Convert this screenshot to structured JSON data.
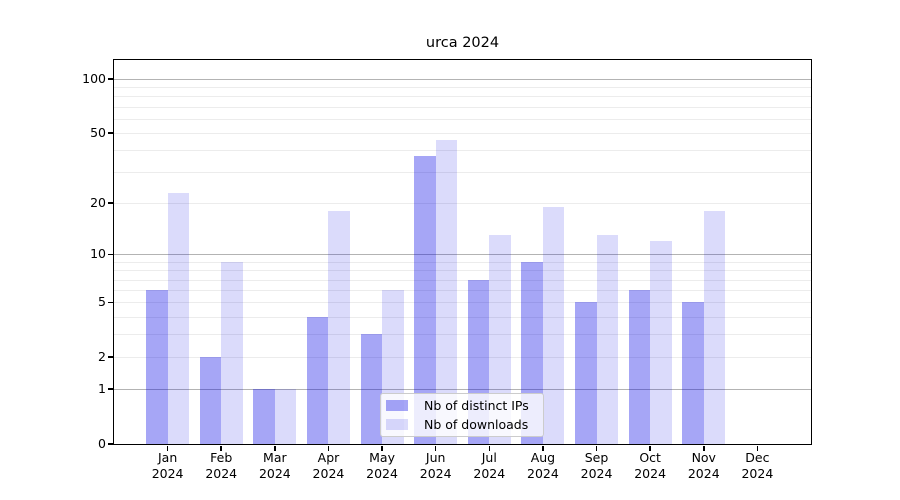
{
  "title": "urca 2024",
  "chart_data": {
    "type": "bar",
    "title": "urca 2024",
    "categories": [
      "Jan 2024",
      "Feb 2024",
      "Mar 2024",
      "Apr 2024",
      "May 2024",
      "Jun 2024",
      "Jul 2024",
      "Aug 2024",
      "Sep 2024",
      "Oct 2024",
      "Nov 2024",
      "Dec 2024"
    ],
    "series": [
      {
        "name": "Nb of distinct IPs",
        "color": "rgba(0,0,230,0.35)",
        "values": [
          6,
          2,
          1,
          4,
          3,
          37,
          7,
          9,
          5,
          6,
          5,
          0
        ]
      },
      {
        "name": "Nb of downloads",
        "color": "rgba(0,0,230,0.14)",
        "values": [
          23,
          9,
          1,
          18,
          6,
          46,
          13,
          19,
          13,
          12,
          18,
          0
        ]
      }
    ],
    "xlabel": "",
    "ylabel": "",
    "yscale": "log1p",
    "ylim": [
      0,
      127.4
    ],
    "yticks": [
      0,
      1,
      2,
      5,
      10,
      20,
      50,
      100
    ],
    "major_gridlines": [
      1,
      10,
      100
    ],
    "minor_gridlines": [
      2,
      3,
      4,
      5,
      6,
      7,
      8,
      9,
      20,
      30,
      40,
      50,
      60,
      70,
      80,
      90
    ],
    "grid": true,
    "legend_position": "lower-center",
    "bar_group_width_fraction": 0.8
  },
  "colors": {
    "bar_distinct_ips": "rgba(0,0,230,0.35)",
    "bar_downloads": "rgba(0,0,230,0.14)",
    "major_grid": "#b3b3b3",
    "minor_grid": "#ececec",
    "axis": "#000000",
    "legend_border": "#cccccc",
    "legend_background": "rgba(255,255,255,0.8)",
    "text": "#000000"
  }
}
